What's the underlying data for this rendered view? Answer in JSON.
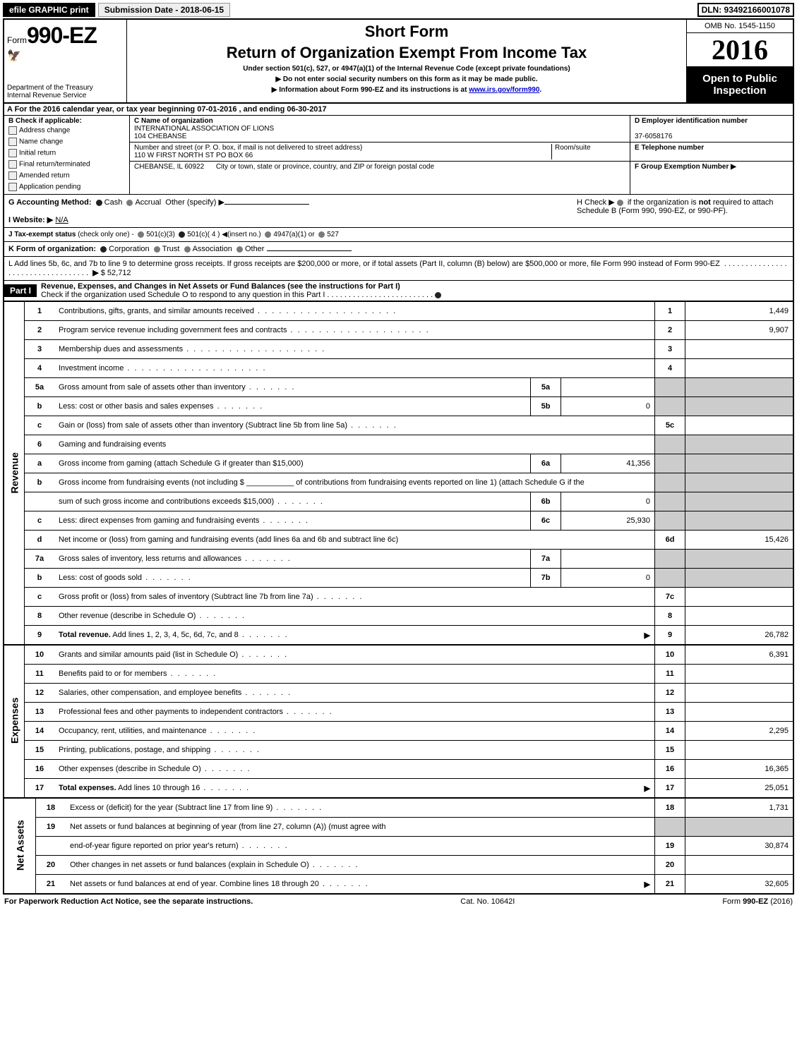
{
  "colors": {
    "bg": "#ffffff",
    "fg": "#000000",
    "shade": "#cccccc",
    "link": "#0000cc"
  },
  "top": {
    "efile": "efile GRAPHIC print",
    "submission": "Submission Date - 2018-06-15",
    "dln": "DLN: 93492166001078"
  },
  "header": {
    "form_prefix": "Form",
    "form_number": "990-EZ",
    "dept1": "Department of the Treasury",
    "dept2": "Internal Revenue Service",
    "short_form": "Short Form",
    "title": "Return of Organization Exempt From Income Tax",
    "under": "Under section 501(c), 527, or 4947(a)(1) of the Internal Revenue Code (except private foundations)",
    "ssn_warn": "▶ Do not enter social security numbers on this form as it may be made public.",
    "info": "▶ Information about Form 990-EZ and its instructions is at ",
    "info_link": "www.irs.gov/form990",
    "info_suffix": ".",
    "omb": "OMB No. 1545-1150",
    "year": "2016",
    "open": "Open to Public Inspection"
  },
  "lineA": {
    "prefix": "A  For the 2016 calendar year, or tax year beginning ",
    "begin": "07-01-2016",
    "mid": " , and ending ",
    "end": "06-30-2017"
  },
  "B": {
    "label": "B  Check if applicable:",
    "opts": [
      "Address change",
      "Name change",
      "Initial return",
      "Final return/terminated",
      "Amended return",
      "Application pending"
    ]
  },
  "C": {
    "label": "C Name of organization",
    "name1": "INTERNATIONAL ASSOCIATION OF LIONS",
    "name2": "104 CHEBANSE",
    "addr_label": "Number and street (or P. O. box, if mail is not delivered to street address)",
    "room_label": "Room/suite",
    "addr": "110 W FIRST NORTH ST PO BOX 66",
    "city_label": "City or town, state or province, country, and ZIP or foreign postal code",
    "city": "CHEBANSE, IL  60922"
  },
  "D": {
    "label": "D Employer identification number",
    "val": "37-6058176"
  },
  "E": {
    "label": "E Telephone number",
    "val": ""
  },
  "F": {
    "label": "F Group Exemption Number ▶",
    "val": ""
  },
  "G": {
    "label": "G Accounting Method:",
    "opts": [
      "Cash",
      "Accrual"
    ],
    "other": "Other (specify) ▶"
  },
  "H": {
    "text1": "H  Check ▶",
    "text2": " if the organization is ",
    "not": "not",
    "text3": " required to attach Schedule B (Form 990, 990-EZ, or 990-PF)."
  },
  "I": {
    "label": "I Website: ▶",
    "val": "N/A"
  },
  "J": {
    "label": "J Tax-exempt status",
    "sub": "(check only one) -",
    "opts": [
      "501(c)(3)",
      "501(c)( 4 ) ◀(insert no.)",
      "4947(a)(1) or",
      "527"
    ]
  },
  "K": {
    "label": "K Form of organization:",
    "opts": [
      "Corporation",
      "Trust",
      "Association",
      "Other"
    ]
  },
  "L": {
    "text": "L Add lines 5b, 6c, and 7b to line 9 to determine gross receipts. If gross receipts are $200,000 or more, or if total assets (Part II, column (B) below) are $500,000 or more, file Form 990 instead of Form 990-EZ",
    "arrow": "▶",
    "amount": "$ 52,712"
  },
  "part1": {
    "name": "Part I",
    "title": "Revenue, Expenses, and Changes in Net Assets or Fund Balances (see the instructions for Part I)",
    "check": "Check if the organization used Schedule O to respond to any question in this Part I"
  },
  "sides": {
    "revenue": "Revenue",
    "expenses": "Expenses",
    "netassets": "Net Assets"
  },
  "rows": [
    {
      "n": "1",
      "d": "Contributions, gifts, grants, and similar amounts received",
      "box": "1",
      "v": "1,449",
      "style": "dots"
    },
    {
      "n": "2",
      "d": "Program service revenue including government fees and contracts",
      "box": "2",
      "v": "9,907",
      "style": "dots"
    },
    {
      "n": "3",
      "d": "Membership dues and assessments",
      "box": "3",
      "v": "",
      "style": "dots"
    },
    {
      "n": "4",
      "d": "Investment income",
      "box": "4",
      "v": "",
      "style": "dots"
    },
    {
      "n": "5a",
      "d": "Gross amount from sale of assets other than inventory",
      "sub": "5a",
      "sv": "",
      "box_shade": true,
      "style": "dots-short"
    },
    {
      "n": "b",
      "d": "Less: cost or other basis and sales expenses",
      "sub": "5b",
      "sv": "0",
      "box_shade": true,
      "style": "dots-short"
    },
    {
      "n": "c",
      "d": "Gain or (loss) from sale of assets other than inventory (Subtract line 5b from line 5a)",
      "box": "5c",
      "v": "",
      "style": "dots-short"
    },
    {
      "n": "6",
      "d": "Gaming and fundraising events",
      "box_shade": true
    },
    {
      "n": "a",
      "d": "Gross income from gaming (attach Schedule G if greater than $15,000)",
      "sub": "6a",
      "sv": "41,356",
      "box_shade": true
    },
    {
      "n": "b",
      "d": "Gross income from fundraising events (not including $ ___________ of contributions from fundraising events reported on line 1) (attach Schedule G if the",
      "wrap": true,
      "box_shade": true
    },
    {
      "n": "",
      "d": "sum of such gross income and contributions exceeds $15,000)",
      "sub": "6b",
      "sv": "0",
      "box_shade": true,
      "style": "dots-short"
    },
    {
      "n": "c",
      "d": "Less: direct expenses from gaming and fundraising events",
      "sub": "6c",
      "sv": "25,930",
      "box_shade": true,
      "style": "dots-short"
    },
    {
      "n": "d",
      "d": "Net income or (loss) from gaming and fundraising events (add lines 6a and 6b and subtract line 6c)",
      "box": "6d",
      "v": "15,426"
    },
    {
      "n": "7a",
      "d": "Gross sales of inventory, less returns and allowances",
      "sub": "7a",
      "sv": "",
      "box_shade": true,
      "style": "dots-short"
    },
    {
      "n": "b",
      "d": "Less: cost of goods sold",
      "sub": "7b",
      "sv": "0",
      "box_shade": true,
      "style": "dots-short"
    },
    {
      "n": "c",
      "d": "Gross profit or (loss) from sales of inventory (Subtract line 7b from line 7a)",
      "box": "7c",
      "v": "",
      "style": "dots-short"
    },
    {
      "n": "8",
      "d": "Other revenue (describe in Schedule O)",
      "box": "8",
      "v": "",
      "style": "dots-short"
    },
    {
      "n": "9",
      "d": "Total revenue. Add lines 1, 2, 3, 4, 5c, 6d, 7c, and 8",
      "box": "9",
      "v": "26,782",
      "bold": true,
      "arrow": true,
      "style": "dots-short"
    }
  ],
  "exp_rows": [
    {
      "n": "10",
      "d": "Grants and similar amounts paid (list in Schedule O)",
      "box": "10",
      "v": "6,391",
      "style": "dots-short"
    },
    {
      "n": "11",
      "d": "Benefits paid to or for members",
      "box": "11",
      "v": "",
      "style": "dots-short"
    },
    {
      "n": "12",
      "d": "Salaries, other compensation, and employee benefits",
      "box": "12",
      "v": "",
      "style": "dots-short"
    },
    {
      "n": "13",
      "d": "Professional fees and other payments to independent contractors",
      "box": "13",
      "v": "",
      "style": "dots-short"
    },
    {
      "n": "14",
      "d": "Occupancy, rent, utilities, and maintenance",
      "box": "14",
      "v": "2,295",
      "style": "dots-short"
    },
    {
      "n": "15",
      "d": "Printing, publications, postage, and shipping",
      "box": "15",
      "v": "",
      "style": "dots-short"
    },
    {
      "n": "16",
      "d": "Other expenses (describe in Schedule O)",
      "box": "16",
      "v": "16,365",
      "style": "dots-short"
    },
    {
      "n": "17",
      "d": "Total expenses. Add lines 10 through 16",
      "box": "17",
      "v": "25,051",
      "bold": true,
      "arrow": true,
      "style": "dots-short"
    }
  ],
  "net_rows": [
    {
      "n": "18",
      "d": "Excess or (deficit) for the year (Subtract line 17 from line 9)",
      "box": "18",
      "v": "1,731",
      "style": "dots-short"
    },
    {
      "n": "19",
      "d": "Net assets or fund balances at beginning of year (from line 27, column (A)) (must agree with",
      "wrap": true,
      "box_shade": true
    },
    {
      "n": "",
      "d": "end-of-year figure reported on prior year's return)",
      "box": "19",
      "v": "30,874",
      "style": "dots-short"
    },
    {
      "n": "20",
      "d": "Other changes in net assets or fund balances (explain in Schedule O)",
      "box": "20",
      "v": "",
      "style": "dots-short"
    },
    {
      "n": "21",
      "d": "Net assets or fund balances at end of year. Combine lines 18 through 20",
      "box": "21",
      "v": "32,605",
      "arrow": true,
      "style": "dots-short"
    }
  ],
  "footer": {
    "left": "For Paperwork Reduction Act Notice, see the separate instructions.",
    "mid": "Cat. No. 10642I",
    "right_prefix": "Form ",
    "right_form": "990-EZ",
    "right_suffix": " (2016)"
  }
}
